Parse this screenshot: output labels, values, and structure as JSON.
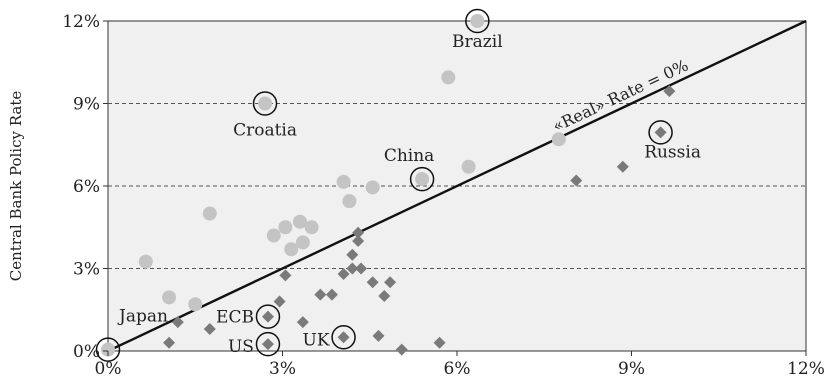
{
  "chart_data": {
    "type": "scatter",
    "ylabel": "Central Bank Policy Rate",
    "xlim": [
      0,
      12
    ],
    "ylim": [
      0,
      12
    ],
    "x_ticks": [
      0,
      3,
      6,
      9,
      12
    ],
    "y_ticks": [
      0,
      3,
      6,
      9,
      12
    ],
    "x_tick_labels": [
      "0%",
      "3%",
      "6%",
      "9%",
      "12%"
    ],
    "y_tick_labels": [
      "0%",
      "3%",
      "6%",
      "9%",
      "12%"
    ],
    "grid": "horizontal-dashed",
    "reference_line": {
      "label": "«Real» Rate = 0%",
      "from": [
        0,
        0
      ],
      "to": [
        12,
        12
      ]
    },
    "series": [
      {
        "marker": "circle",
        "color": "#c4c4c4",
        "points": [
          [
            6.35,
            12.0
          ],
          [
            5.85,
            9.95
          ],
          [
            2.7,
            9.0
          ],
          [
            7.75,
            7.7
          ],
          [
            6.2,
            6.7
          ],
          [
            5.4,
            6.25
          ],
          [
            4.05,
            6.15
          ],
          [
            4.55,
            5.95
          ],
          [
            4.15,
            5.45
          ],
          [
            1.75,
            5.0
          ],
          [
            3.3,
            4.7
          ],
          [
            3.05,
            4.5
          ],
          [
            3.5,
            4.5
          ],
          [
            2.85,
            4.2
          ],
          [
            3.35,
            3.95
          ],
          [
            3.15,
            3.7
          ],
          [
            0.65,
            3.25
          ],
          [
            1.05,
            1.95
          ],
          [
            1.5,
            1.7
          ],
          [
            0.0,
            0.05
          ]
        ]
      },
      {
        "marker": "diamond",
        "color": "#7a7a7a",
        "points": [
          [
            9.65,
            9.45
          ],
          [
            9.5,
            7.95
          ],
          [
            8.85,
            6.7
          ],
          [
            8.05,
            6.2
          ],
          [
            4.3,
            4.3
          ],
          [
            4.3,
            4.0
          ],
          [
            4.2,
            3.5
          ],
          [
            4.2,
            3.0
          ],
          [
            4.05,
            2.8
          ],
          [
            4.35,
            3.0
          ],
          [
            3.05,
            2.75
          ],
          [
            4.55,
            2.5
          ],
          [
            4.85,
            2.5
          ],
          [
            3.65,
            2.05
          ],
          [
            3.85,
            2.05
          ],
          [
            4.75,
            2.0
          ],
          [
            2.95,
            1.8
          ],
          [
            1.2,
            1.05
          ],
          [
            3.35,
            1.05
          ],
          [
            1.75,
            0.8
          ],
          [
            2.75,
            1.25
          ],
          [
            4.05,
            0.5
          ],
          [
            4.65,
            0.55
          ],
          [
            5.7,
            0.3
          ],
          [
            1.05,
            0.3
          ],
          [
            2.75,
            0.25
          ],
          [
            5.05,
            0.05
          ]
        ]
      }
    ],
    "highlighted": [
      {
        "label": "Brazil",
        "x": 6.35,
        "y": 12.0
      },
      {
        "label": "Croatia",
        "x": 2.7,
        "y": 9.0
      },
      {
        "label": "China",
        "x": 5.4,
        "y": 6.25
      },
      {
        "label": "Russia",
        "x": 9.5,
        "y": 7.95
      },
      {
        "label": "ECB",
        "x": 2.75,
        "y": 1.25
      },
      {
        "label": "US",
        "x": 2.75,
        "y": 0.25
      },
      {
        "label": "UK",
        "x": 4.05,
        "y": 0.5
      },
      {
        "label": "Japan",
        "x": 0.0,
        "y": 0.05
      }
    ],
    "colors": {
      "plot_background": "#f0f0f0",
      "circle_marker": "#c4c4c4",
      "diamond_marker": "#7a7a7a",
      "line": "#111111"
    }
  }
}
